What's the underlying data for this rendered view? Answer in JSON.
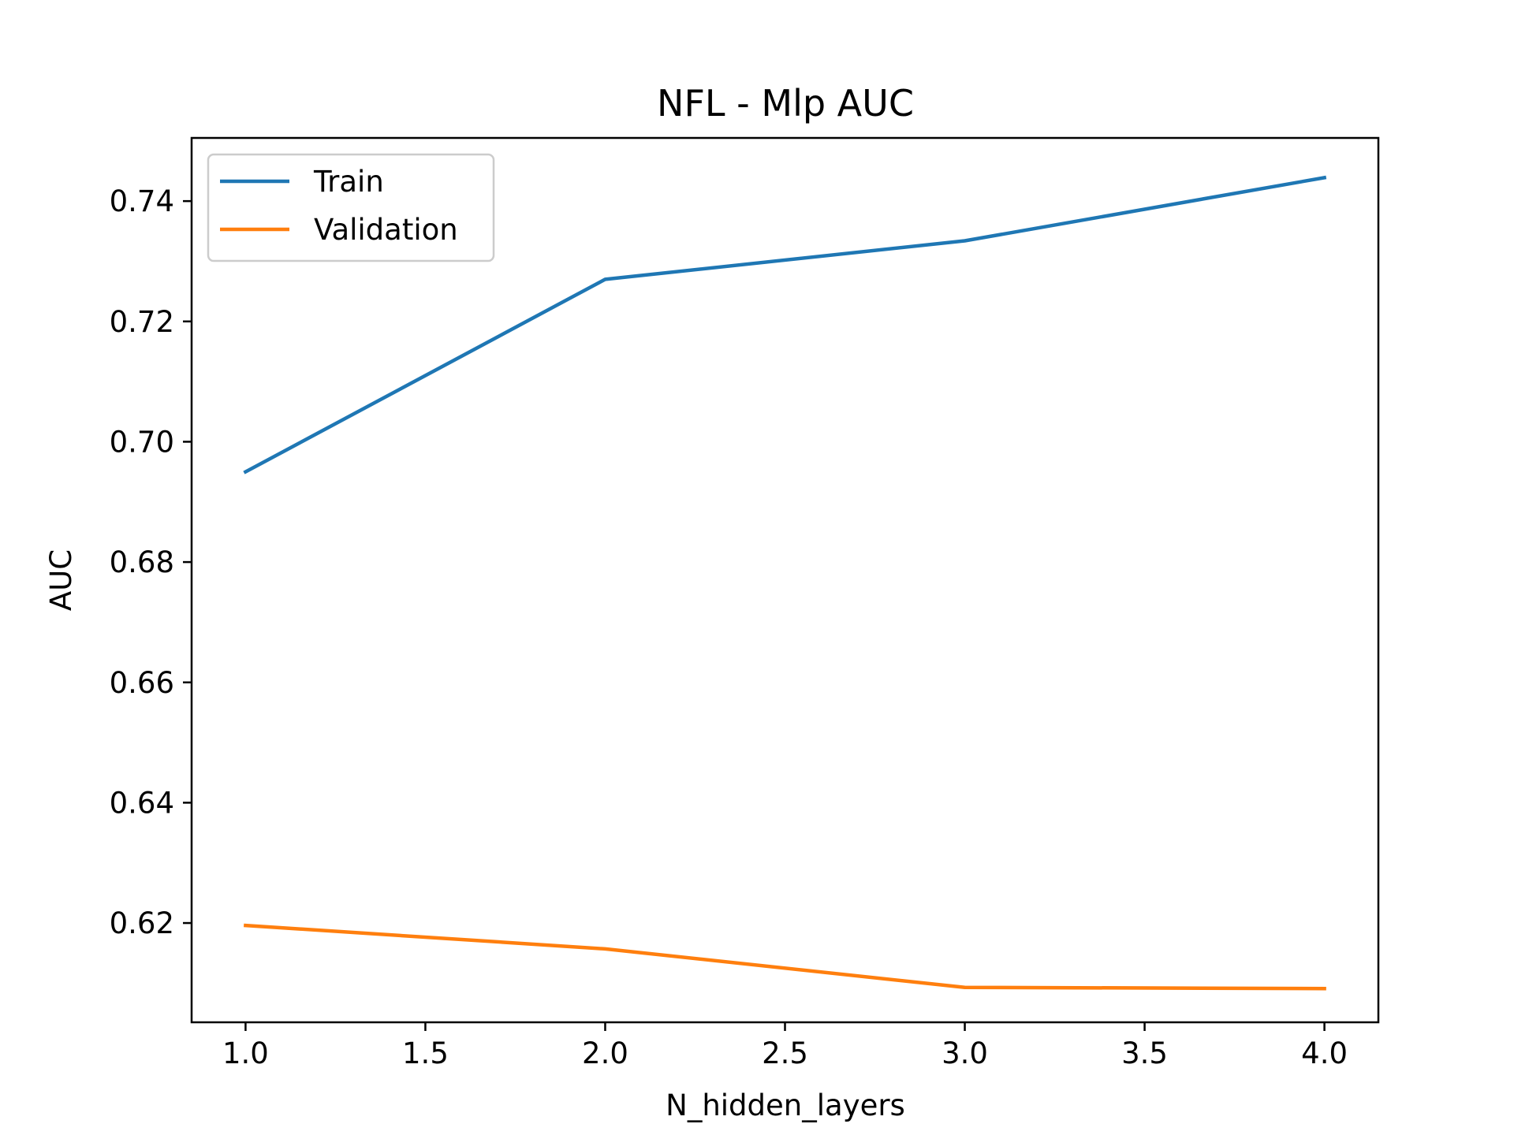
{
  "chart_data": {
    "type": "line",
    "title": "NFL - Mlp AUC",
    "xlabel": "N_hidden_layers",
    "ylabel": "AUC",
    "xlim": [
      0.85,
      4.15
    ],
    "ylim": [
      0.6035,
      0.7505
    ],
    "xticks": [
      1.0,
      1.5,
      2.0,
      2.5,
      3.0,
      3.5,
      4.0
    ],
    "xtick_labels": [
      "1.0",
      "1.5",
      "2.0",
      "2.5",
      "3.0",
      "3.5",
      "4.0"
    ],
    "yticks": [
      0.62,
      0.64,
      0.66,
      0.68,
      0.7,
      0.72,
      0.74
    ],
    "ytick_labels": [
      "0.62",
      "0.64",
      "0.66",
      "0.68",
      "0.70",
      "0.72",
      "0.74"
    ],
    "grid": false,
    "legend_position": "top-left",
    "x": [
      1.0,
      2.0,
      3.0,
      4.0
    ],
    "series": [
      {
        "name": "Train",
        "color": "#1f77b4",
        "values": [
          0.695,
          0.727,
          0.7334,
          0.7439
        ]
      },
      {
        "name": "Validation",
        "color": "#ff7f0e",
        "values": [
          0.6196,
          0.6157,
          0.6093,
          0.6091
        ]
      }
    ]
  }
}
